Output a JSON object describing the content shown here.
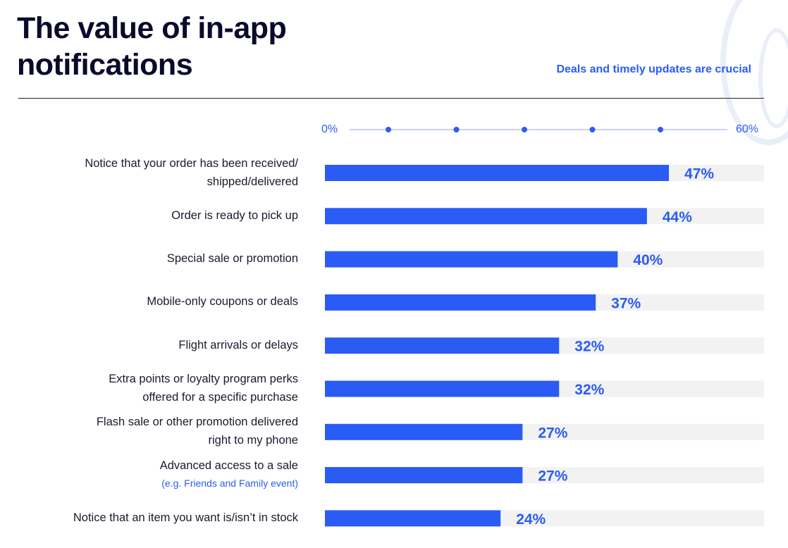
{
  "header": {
    "title_line1": "The value of in-app",
    "title_line2": "notifications",
    "subtitle": "Deals and timely updates are crucial"
  },
  "colors": {
    "accent": "#2b5bf5",
    "track": "#f2f2f2",
    "title": "#0a0a2a",
    "rule": "#222222"
  },
  "chart_data": {
    "type": "bar",
    "orientation": "horizontal",
    "xlim": [
      0,
      60
    ],
    "axis_labels": {
      "min": "0%",
      "max": "60%"
    },
    "axis_intermediate_ticks": [
      10,
      20,
      30,
      40,
      50
    ],
    "grid": false,
    "categories": [
      {
        "line1": "Notice that your order has been received/",
        "line2": "shipped/delivered",
        "note": ""
      },
      {
        "line1": "Order is ready to pick up",
        "line2": "",
        "note": ""
      },
      {
        "line1": "Special sale or promotion",
        "line2": "",
        "note": ""
      },
      {
        "line1": "Mobile-only coupons or deals",
        "line2": "",
        "note": ""
      },
      {
        "line1": "Flight arrivals or delays",
        "line2": "",
        "note": ""
      },
      {
        "line1": "Extra points or loyalty program perks",
        "line2": "offered for a specific purchase",
        "note": ""
      },
      {
        "line1": "Flash sale or other promotion delivered",
        "line2": "right to my phone",
        "note": ""
      },
      {
        "line1": "Advanced access to a sale",
        "line2": "",
        "note": "(e.g. Friends and Family event)"
      },
      {
        "line1": "Notice that an item you want is/isn’t in stock",
        "line2": "",
        "note": ""
      }
    ],
    "values": [
      47,
      44,
      40,
      37,
      32,
      32,
      27,
      27,
      24
    ],
    "value_labels": [
      "47%",
      "44%",
      "40%",
      "37%",
      "32%",
      "32%",
      "27%",
      "27%",
      "24%"
    ]
  }
}
